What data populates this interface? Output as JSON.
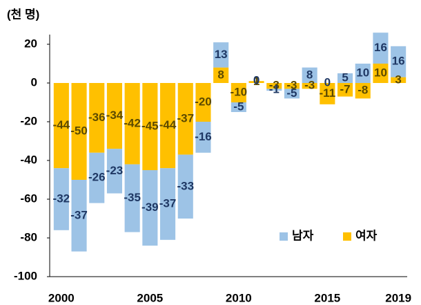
{
  "chart_data": {
    "type": "bar",
    "stacked": true,
    "unit_label": "(천 명)",
    "categories": [
      "2000",
      null,
      null,
      null,
      null,
      "2005",
      null,
      null,
      null,
      null,
      "2010",
      null,
      null,
      null,
      null,
      "2015",
      null,
      null,
      null,
      "2019"
    ],
    "series": [
      {
        "name": "남자",
        "color": "#9dc3e6",
        "label_color": "#1f3864",
        "values": [
          -32,
          -37,
          -26,
          -23,
          -35,
          -39,
          -37,
          -33,
          -16,
          13,
          -5,
          0,
          -1,
          -5,
          8,
          0,
          5,
          10,
          16,
          16
        ]
      },
      {
        "name": "여자",
        "color": "#ffc000",
        "label_color": "#5c4a00",
        "values": [
          -44,
          -50,
          -36,
          -34,
          -42,
          -45,
          -44,
          -37,
          -20,
          8,
          -10,
          1,
          -3,
          -3,
          -3,
          -11,
          -7,
          -8,
          10,
          3
        ]
      }
    ],
    "ylim": [
      -100,
      25
    ],
    "yticks": [
      -100,
      -80,
      -60,
      -40,
      -20,
      0,
      20
    ],
    "grid": false,
    "legend": "lower right"
  }
}
